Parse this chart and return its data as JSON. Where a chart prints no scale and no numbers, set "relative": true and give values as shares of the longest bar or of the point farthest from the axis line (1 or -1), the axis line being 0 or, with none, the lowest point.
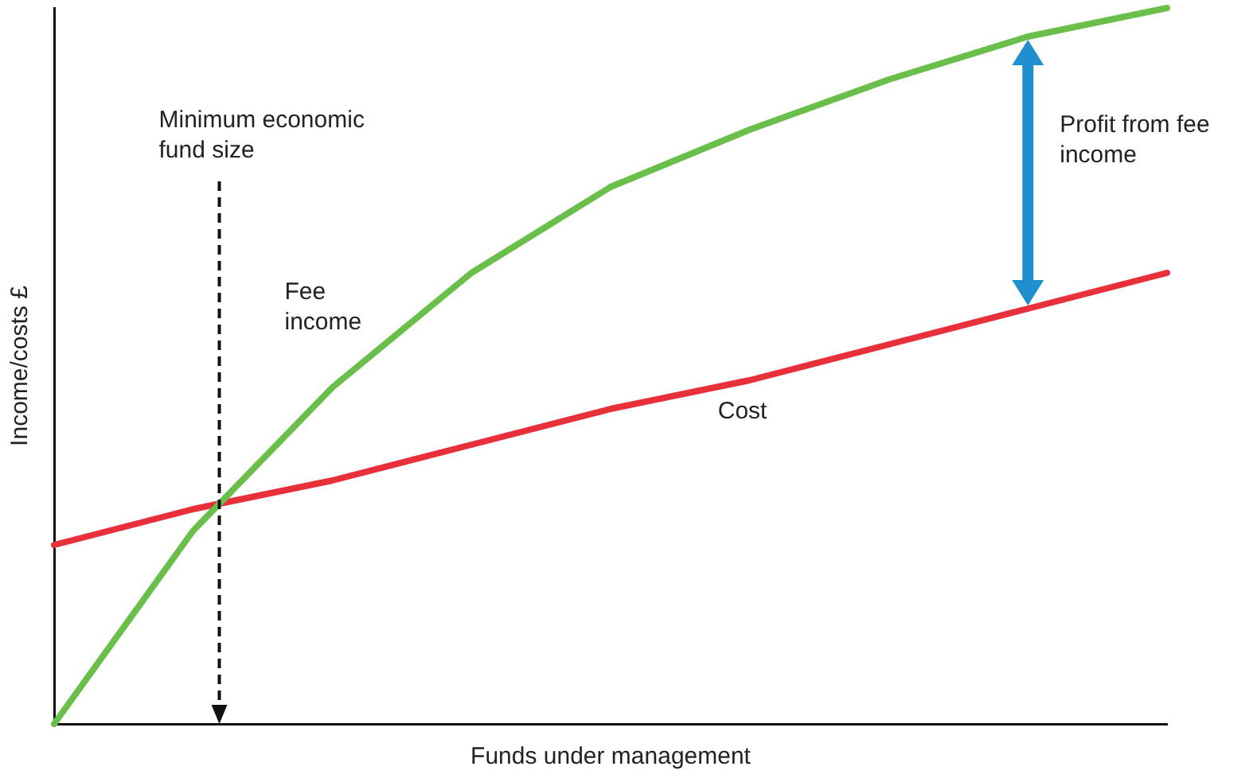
{
  "chart_data": {
    "type": "line",
    "relative": true,
    "xlabel": "Funds under management",
    "ylabel": "Income/costs £",
    "categories": [
      null,
      null,
      null,
      null,
      null,
      null,
      null,
      null,
      null
    ],
    "series": [
      {
        "name": "Fee income",
        "color": "#6abf4b",
        "values": [
          0,
          0.27,
          0.47,
          0.63,
          0.75,
          0.83,
          0.9,
          0.96,
          1
        ]
      },
      {
        "name": "Cost",
        "color": "#e8303a",
        "values": [
          0.25,
          0.3,
          0.34,
          0.39,
          0.44,
          0.48,
          0.53,
          0.58,
          0.63
        ]
      }
    ],
    "annotations": [
      "Minimum economic fund size",
      "Profit from fee income"
    ],
    "grid": false,
    "legend": false,
    "marker": "none",
    "line_style": "solid"
  }
}
